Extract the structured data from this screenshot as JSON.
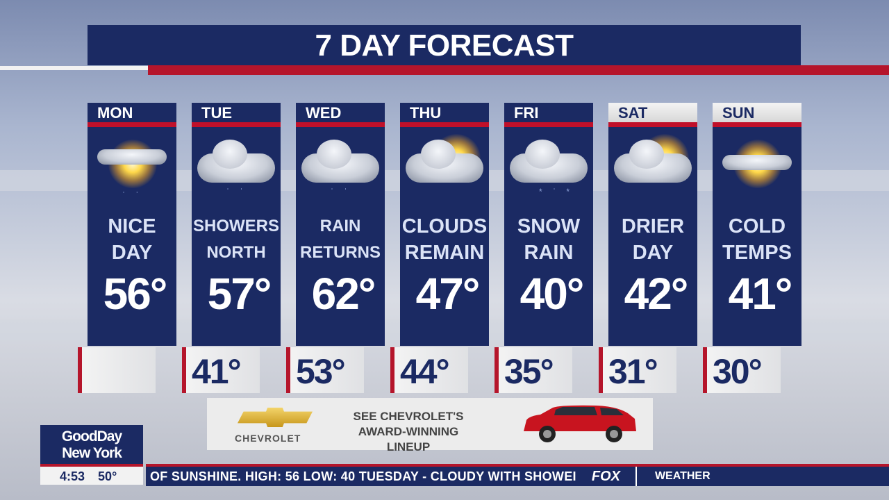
{
  "title": "7 DAY FORECAST",
  "days": [
    {
      "day": "MON",
      "desc1": "NICE",
      "desc2": "DAY",
      "high": "56°",
      "low": "",
      "icon": "sun-cloud-icon"
    },
    {
      "day": "TUE",
      "desc1": "SHOWERS",
      "desc2": "NORTH",
      "high": "57°",
      "low": "41°",
      "icon": "cloud-rain-icon"
    },
    {
      "day": "WED",
      "desc1": "RAIN",
      "desc2": "RETURNS",
      "high": "62°",
      "low": "53°",
      "icon": "cloud-rain-icon"
    },
    {
      "day": "THU",
      "desc1": "CLOUDS",
      "desc2": "REMAIN",
      "high": "47°",
      "low": "44°",
      "icon": "partly-cloudy-icon"
    },
    {
      "day": "FRI",
      "desc1": "SNOW",
      "desc2": "RAIN",
      "high": "40°",
      "low": "35°",
      "icon": "cloud-snow-rain-icon"
    },
    {
      "day": "SAT",
      "desc1": "DRIER",
      "desc2": "DAY",
      "high": "42°",
      "low": "31°",
      "icon": "partly-cloudy-icon"
    },
    {
      "day": "SUN",
      "desc1": "COLD",
      "desc2": "TEMPS",
      "high": "41°",
      "low": "30°",
      "icon": "sunny-icon"
    }
  ],
  "ad": {
    "brand": "CHEVROLET",
    "line1": "SEE CHEVROLET'S",
    "line2": "AWARD-WINNING LINEUP"
  },
  "show": {
    "line1": "GoodDay",
    "line2": "New York",
    "time": "4:53",
    "temp": "50°"
  },
  "ticker": {
    "text": "OF SUNSHINE. HIGH:  56 LOW:  40              TUESDAY - CLOUDY WITH SHOWEI",
    "network": "FOX",
    "section": "WEATHER"
  },
  "colors": {
    "navy": "#1b2a63",
    "red": "#b5152b"
  }
}
